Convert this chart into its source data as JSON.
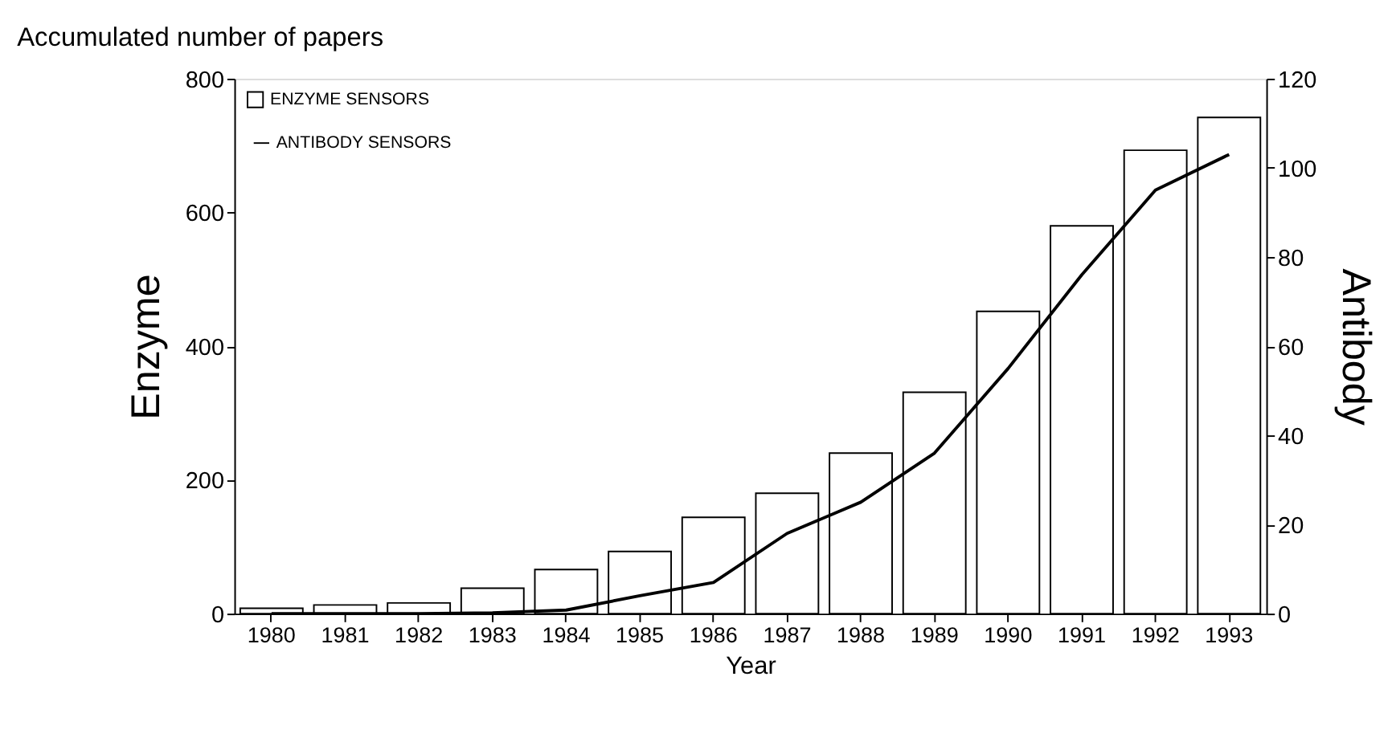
{
  "chart_data": {
    "type": "bar",
    "title": "Accumulated number of papers",
    "xlabel": "Year",
    "ylabel": "Enzyme",
    "y2label": "Antibody",
    "categories": [
      "1980",
      "1981",
      "1982",
      "1983",
      "1984",
      "1985",
      "1986",
      "1987",
      "1988",
      "1989",
      "1990",
      "1991",
      "1992",
      "1993"
    ],
    "series": [
      {
        "name": "ENZYME SENSORS",
        "color": "#ffffff",
        "values": [
          8,
          13,
          16,
          38,
          66,
          93,
          144,
          180,
          240,
          331,
          452,
          580,
          693,
          742
        ]
      },
      {
        "name": "ANTIBODY SENSORS",
        "type": "line",
        "axis": "y2",
        "color": "#000000",
        "values": [
          0,
          0,
          0,
          0.2,
          0.8,
          4,
          7,
          18,
          25,
          36,
          55,
          76,
          95,
          103
        ]
      }
    ],
    "ylim": [
      0,
      800
    ],
    "yticks": [
      0,
      200,
      400,
      600,
      800
    ],
    "y2lim": [
      0,
      120
    ],
    "y2ticks": [
      0,
      20,
      40,
      60,
      80,
      100,
      120
    ],
    "grid": false,
    "legend": "top left",
    "marker": "none",
    "line_style": "solid"
  }
}
